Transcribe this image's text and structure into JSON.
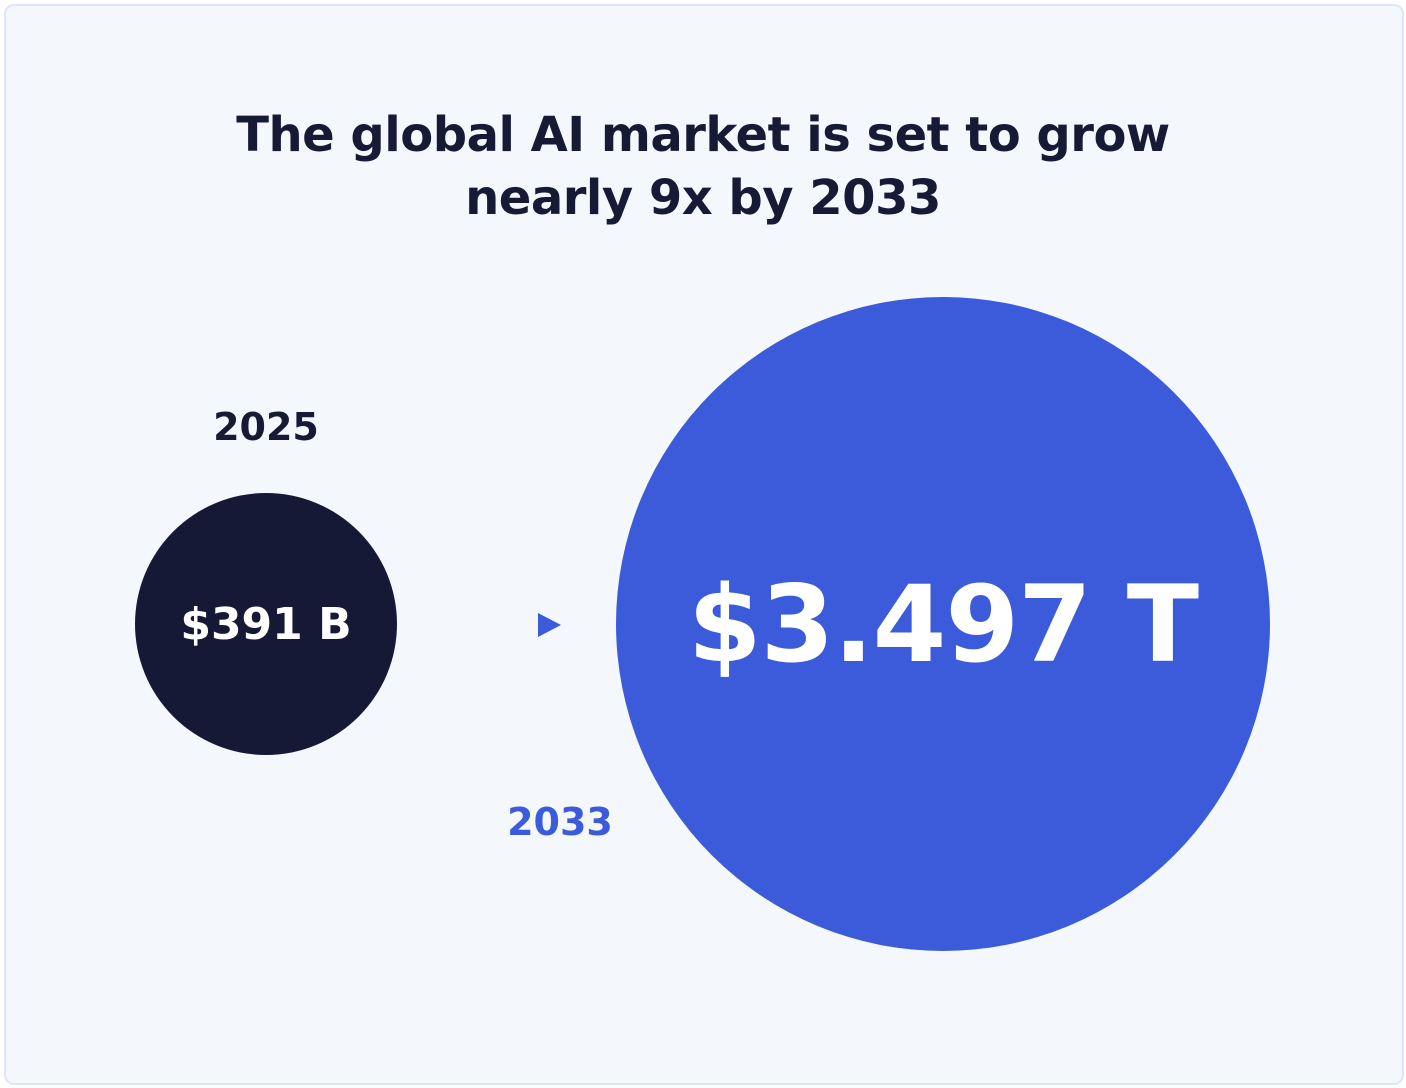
{
  "chart_data": {
    "type": "bubble",
    "title": "The global AI market is set to grow nearly 9x by 2033",
    "title_lines": [
      "The global AI market is set to grow",
      "nearly 9x by 2033"
    ],
    "points": [
      {
        "year": "2025",
        "value_label": "$391 B",
        "value_usd_billions": 391,
        "color": "#161935"
      },
      {
        "year": "2033",
        "value_label": "$3.497 T",
        "value_usd_billions": 3497,
        "color": "#3b5bdb"
      }
    ],
    "arrow": "right-arrow-icon",
    "colors": {
      "background": "#f4f8fd",
      "dark": "#161935",
      "accent": "#3b5bdb"
    }
  }
}
